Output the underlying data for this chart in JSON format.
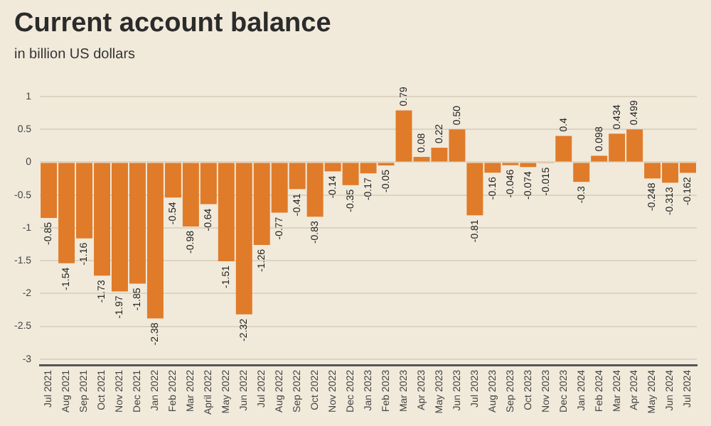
{
  "chart_data": {
    "type": "bar",
    "title": "Current account balance",
    "subtitle": "in billion US dollars",
    "categories": [
      "Jul 2021",
      "Aug 2021",
      "Sep 2021",
      "Oct 2021",
      "Nov 2021",
      "Dec 2021",
      "Jan 2022",
      "Feb 2022",
      "Mar 2022",
      "April 2022",
      "May 2022",
      "Jun 2022",
      "Jul 2022",
      "Aug 2022",
      "Sep 2022",
      "Oct 2022",
      "Nov 2022",
      "Dec 2022",
      "Jan 2023",
      "Feb 2023",
      "Mar 2023",
      "Apr 2023",
      "May 2023",
      "Jun 2023",
      "Jul 2023",
      "Aug 2023",
      "Sep 2023",
      "Oct 2023",
      "Nov 2023",
      "Dec 2023",
      "Jan 2024",
      "Feb 2024",
      "Mar 2024",
      "Apr 2024",
      "May 2024",
      "Jun 2024",
      "Jul 2024"
    ],
    "values": [
      -0.85,
      -1.54,
      -1.16,
      -1.73,
      -1.97,
      -1.85,
      -2.38,
      -0.54,
      -0.98,
      -0.64,
      -1.51,
      -2.32,
      -1.26,
      -0.77,
      -0.41,
      -0.83,
      -0.14,
      -0.35,
      -0.17,
      -0.05,
      0.79,
      0.08,
      0.22,
      0.5,
      -0.81,
      -0.16,
      -0.046,
      -0.074,
      -0.015,
      0.4,
      -0.3,
      0.098,
      0.434,
      0.499,
      -0.248,
      -0.313,
      -0.162
    ],
    "value_labels": [
      "-0.85",
      "-1.54",
      "-1.16",
      "-1.73",
      "-1.97",
      "-1.85",
      "-2.38",
      "-0.54",
      "-0.98",
      "-0.64",
      "-1.51",
      "-2.32",
      "-1.26",
      "-0.77",
      "-0.41",
      "-0.83",
      "-0.14",
      "-0.35",
      "-0.17",
      "-0.05",
      "0.79",
      "0.08",
      "0.22",
      "0.50",
      "-0.81",
      "-0.16",
      "-0.046",
      "-0.074",
      "-0.015",
      "0.4",
      "-0.3",
      "0.098",
      "0.434",
      "0.499",
      "-0.248",
      "-0.313",
      "-0.162"
    ],
    "color": "#e07b2a",
    "ylim": [
      -3.1,
      1
    ],
    "yticks": [
      -3,
      -2.5,
      -2,
      -1.5,
      -1,
      -0.5,
      0,
      0.5,
      1
    ],
    "grid": "y",
    "legend": false
  }
}
